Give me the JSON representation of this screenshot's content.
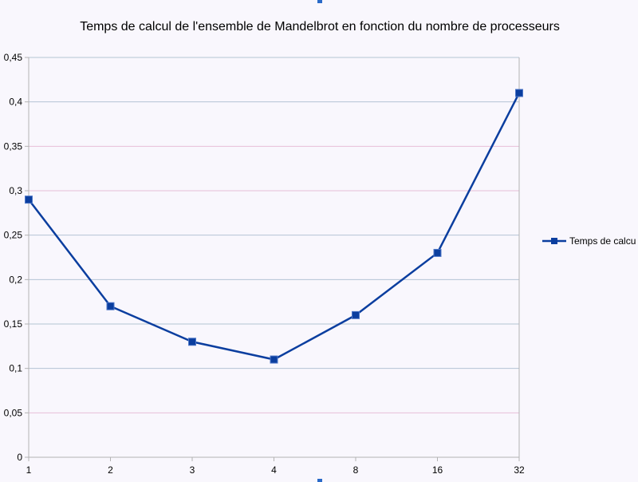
{
  "chart_data": {
    "type": "line",
    "title": "Temps de calcul de l'ensemble de Mandelbrot en fonction du nombre de processeurs",
    "categories": [
      "1",
      "2",
      "3",
      "4",
      "8",
      "16",
      "32"
    ],
    "series": [
      {
        "name": "Temps de calcu",
        "values": [
          0.29,
          0.17,
          0.13,
          0.11,
          0.16,
          0.23,
          0.41
        ],
        "color": "#0b3e9f",
        "marker": "square"
      }
    ],
    "ylim": [
      0,
      0.45
    ],
    "yticks": [
      "0",
      "0,05",
      "0,1",
      "0,15",
      "0,2",
      "0,25",
      "0,3",
      "0,35",
      "0,4",
      "0,45"
    ],
    "grid": true,
    "legend": "right"
  }
}
